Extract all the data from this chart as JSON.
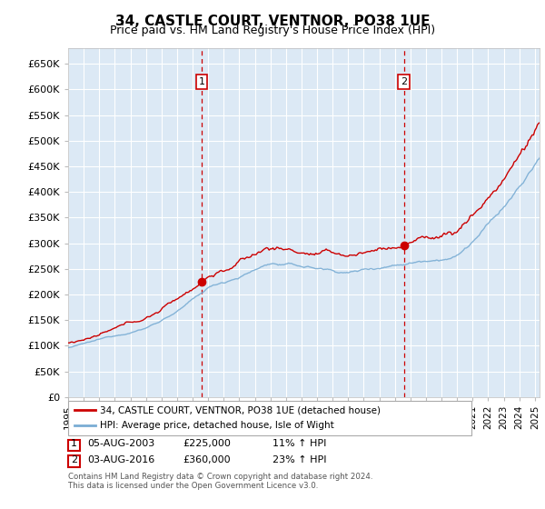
{
  "title": "34, CASTLE COURT, VENTNOR, PO38 1UE",
  "subtitle": "Price paid vs. HM Land Registry's House Price Index (HPI)",
  "ylim": [
    0,
    680000
  ],
  "xlim_start": 1995.0,
  "xlim_end": 2025.3,
  "background_color": "#dce9f5",
  "grid_color": "#ffffff",
  "transaction1": {
    "date_x": 2003.59,
    "price": 225000,
    "label": "1"
  },
  "transaction2": {
    "date_x": 2016.59,
    "price": 360000,
    "label": "2"
  },
  "legend_line1": "34, CASTLE COURT, VENTNOR, PO38 1UE (detached house)",
  "legend_line2": "HPI: Average price, detached house, Isle of Wight",
  "table_row1": [
    "1",
    "05-AUG-2003",
    "£225,000",
    "11% ↑ HPI"
  ],
  "table_row2": [
    "2",
    "03-AUG-2016",
    "£360,000",
    "23% ↑ HPI"
  ],
  "footer": "Contains HM Land Registry data © Crown copyright and database right 2024.\nThis data is licensed under the Open Government Licence v3.0.",
  "red_color": "#cc0000",
  "blue_color": "#7aadd4",
  "title_fontsize": 11,
  "subtitle_fontsize": 9
}
